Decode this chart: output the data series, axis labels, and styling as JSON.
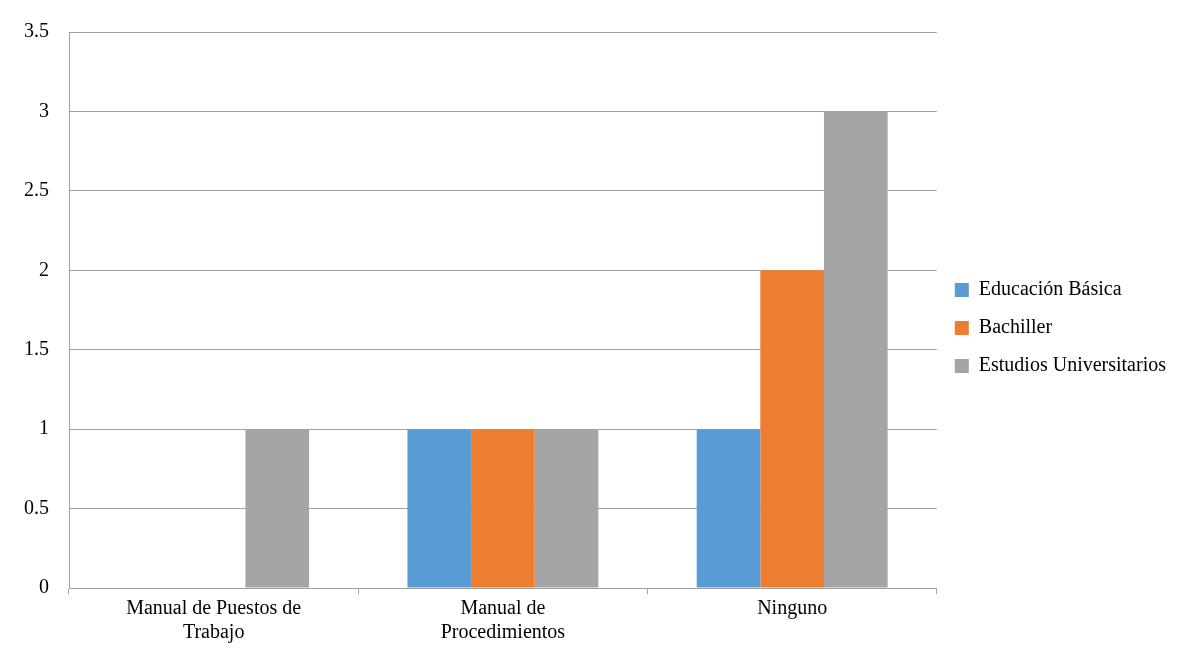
{
  "chart_data": {
    "type": "bar",
    "categories": [
      "Manual de Puestos de Trabajo",
      "Manual de Procedimientos",
      "Ninguno"
    ],
    "series": [
      {
        "name": "Educación Básica",
        "color": "#5b9bd5",
        "values": [
          0,
          1,
          1
        ]
      },
      {
        "name": "Bachiller",
        "color": "#ed7d31",
        "values": [
          0,
          1,
          2
        ]
      },
      {
        "name": "Estudios Universitarios",
        "color": "#a5a5a5",
        "values": [
          1,
          1,
          3
        ]
      }
    ],
    "ylim": [
      0,
      3.5
    ],
    "yticks": [
      0,
      0.5,
      1,
      1.5,
      2,
      2.5,
      3,
      3.5
    ],
    "grid": "y",
    "legend": "right"
  }
}
